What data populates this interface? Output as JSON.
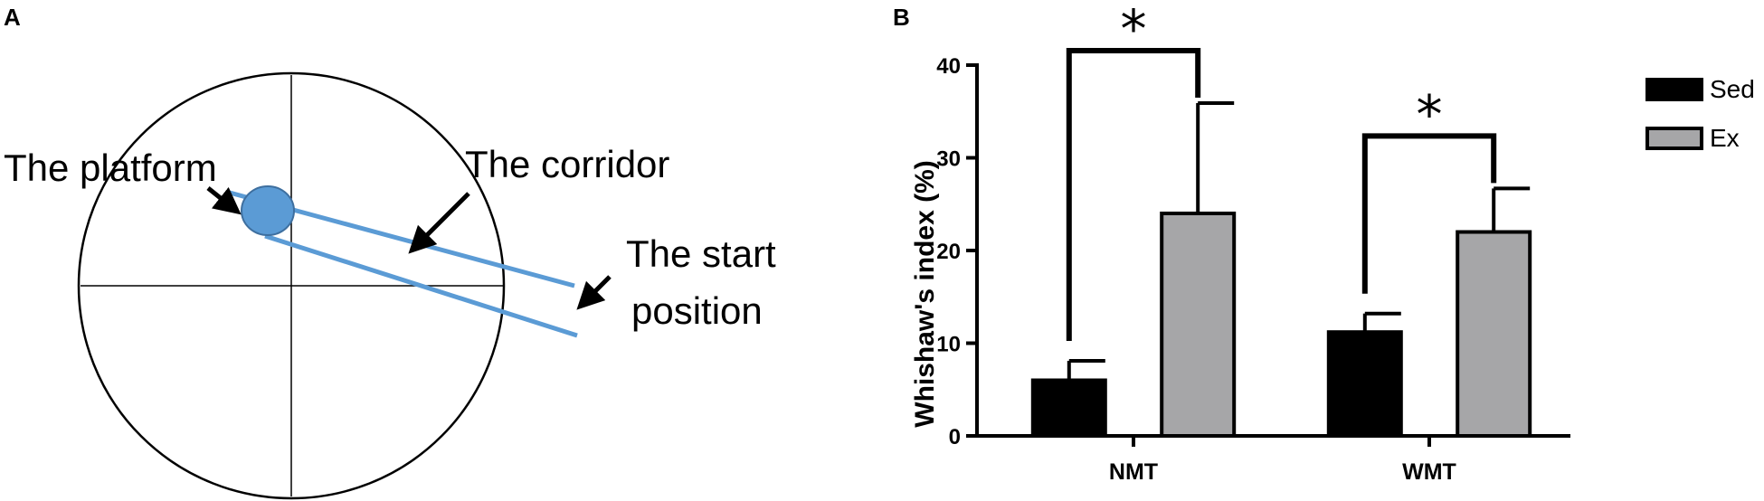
{
  "panel_a": {
    "letter": "A",
    "platform_label": "The platform",
    "corridor_label": "The corridor",
    "start_label_line1": "The start",
    "start_label_line2": "position",
    "platform_color": "#5b9bd5",
    "corridor_color": "#5b9bd5"
  },
  "panel_b": {
    "letter": "B"
  },
  "chart_data": {
    "type": "bar",
    "title": "",
    "ylabel": "Whishaw's index (%)",
    "xlabel": "",
    "ylim": [
      0,
      40
    ],
    "yticks": [
      "0",
      "10",
      "20",
      "30",
      "40"
    ],
    "categories": [
      "NMT",
      "WMT"
    ],
    "series": [
      {
        "name": "Sed",
        "color": "#000000",
        "values": [
          6,
          11.2
        ],
        "errors": [
          2.1,
          2.0
        ]
      },
      {
        "name": "Ex",
        "color": "#a6a6a8",
        "values": [
          24,
          22
        ],
        "errors": [
          11.9,
          4.7
        ]
      }
    ],
    "significance": [
      {
        "category": "NMT",
        "label": "*"
      },
      {
        "category": "WMT",
        "label": "*"
      }
    ],
    "legend_position": "right"
  }
}
